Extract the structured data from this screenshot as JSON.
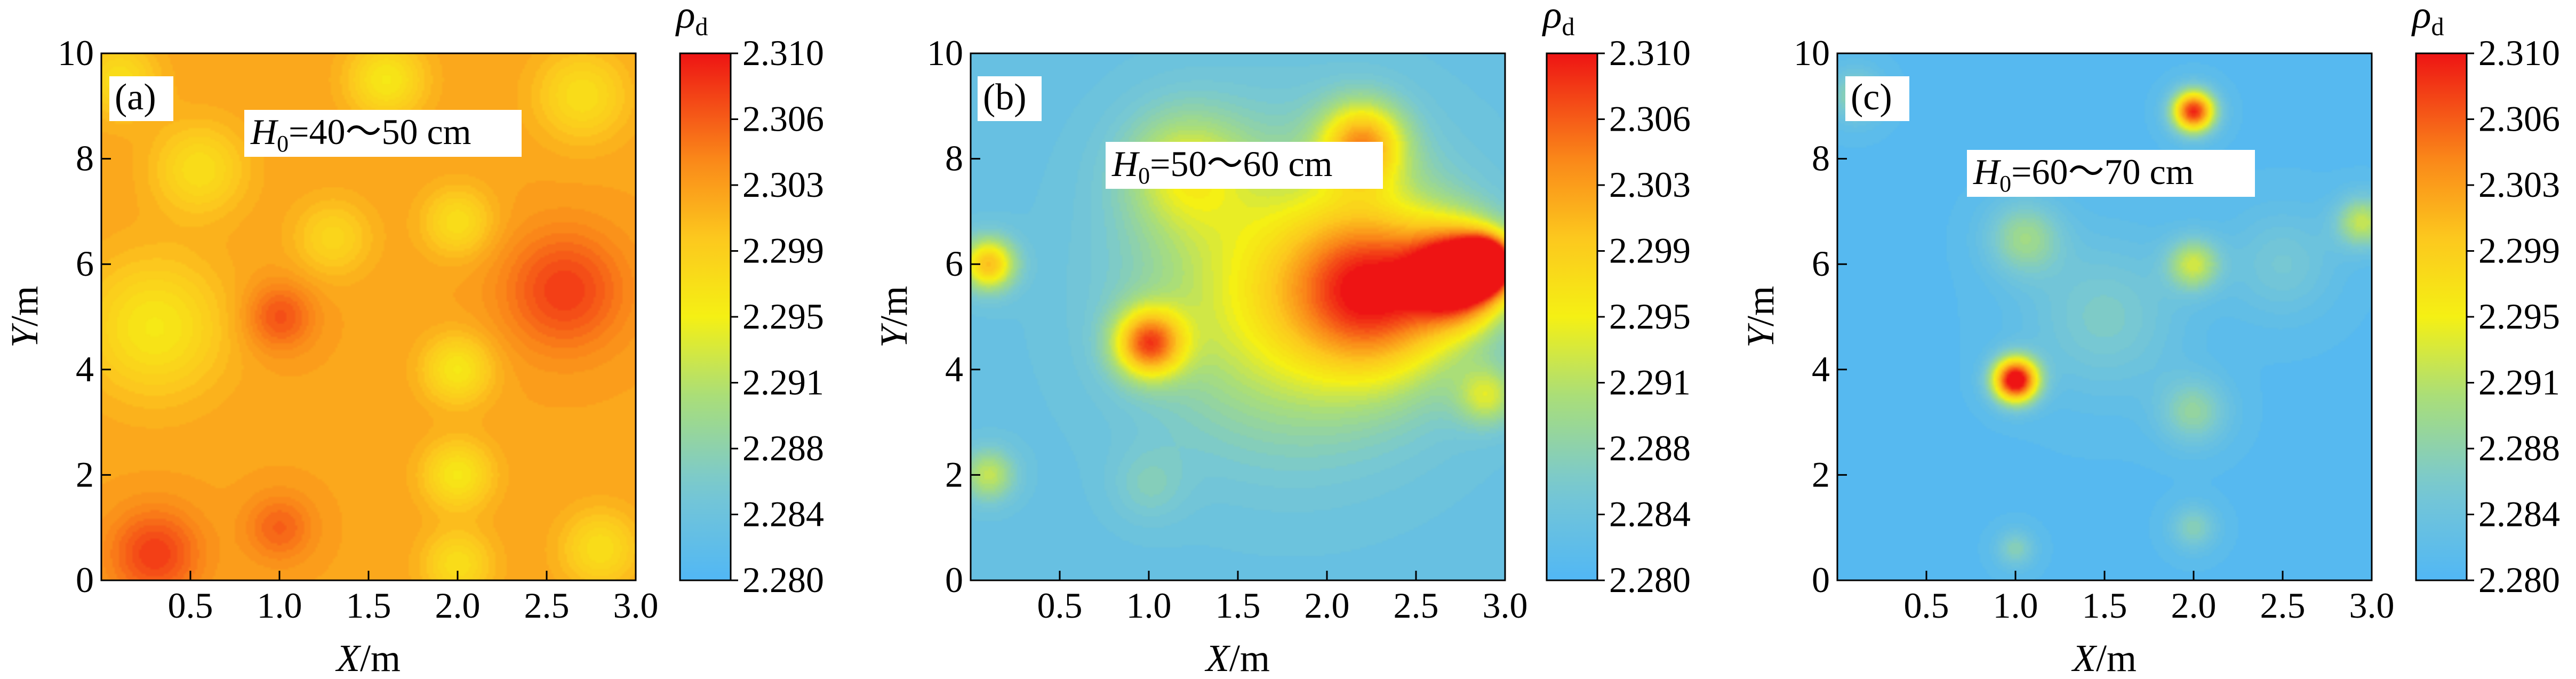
{
  "figure": {
    "panels": [
      {
        "tag": "(a)",
        "annotation_prefix": "H",
        "annotation_sub": "0",
        "annotation_suffix": "=40～50 cm"
      },
      {
        "tag": "(b)",
        "annotation_prefix": "H",
        "annotation_sub": "0",
        "annotation_suffix": "=50～60 cm"
      },
      {
        "tag": "(c)",
        "annotation_prefix": "H",
        "annotation_sub": "0",
        "annotation_suffix": "=60～70 cm"
      }
    ],
    "colorbar_symbol": "ρ",
    "colorbar_symbol_sub": "d"
  },
  "chart_data": [
    {
      "type": "heatmap",
      "title": "",
      "xlabel": "X/m",
      "ylabel": "Y/m",
      "xlim": [
        0,
        3.0
      ],
      "ylim": [
        0,
        10
      ],
      "xticks": [
        "0.5",
        "1.0",
        "1.5",
        "2.0",
        "2.5",
        "3.0"
      ],
      "yticks": [
        "0",
        "2",
        "4",
        "6",
        "8",
        "10"
      ],
      "colorbar": {
        "label": "ρd",
        "min": 2.28,
        "max": 2.31,
        "ticks": [
          "2.310",
          "2.306",
          "2.303",
          "2.299",
          "2.295",
          "2.291",
          "2.288",
          "2.284",
          "2.280"
        ]
      },
      "base_value": 2.302,
      "blobs": [
        {
          "x": 0.3,
          "y": 4.8,
          "value": 2.296,
          "spread": 0.9
        },
        {
          "x": 0.55,
          "y": 7.8,
          "value": 2.297,
          "spread": 0.6
        },
        {
          "x": 0.1,
          "y": 9.5,
          "value": 2.297,
          "spread": 0.5
        },
        {
          "x": 1.0,
          "y": 5.0,
          "value": 2.307,
          "spread": 0.45
        },
        {
          "x": 1.0,
          "y": 1.0,
          "value": 2.306,
          "spread": 0.45
        },
        {
          "x": 0.3,
          "y": 0.5,
          "value": 2.308,
          "spread": 0.6
        },
        {
          "x": 1.3,
          "y": 6.5,
          "value": 2.298,
          "spread": 0.5
        },
        {
          "x": 2.0,
          "y": 6.8,
          "value": 2.297,
          "spread": 0.45
        },
        {
          "x": 2.0,
          "y": 4.0,
          "value": 2.296,
          "spread": 0.45
        },
        {
          "x": 2.0,
          "y": 2.0,
          "value": 2.296,
          "spread": 0.45
        },
        {
          "x": 2.0,
          "y": 0.3,
          "value": 2.297,
          "spread": 0.45
        },
        {
          "x": 2.6,
          "y": 5.5,
          "value": 2.308,
          "spread": 0.8
        },
        {
          "x": 2.8,
          "y": 0.6,
          "value": 2.297,
          "spread": 0.5
        },
        {
          "x": 2.7,
          "y": 9.2,
          "value": 2.297,
          "spread": 0.6
        },
        {
          "x": 1.6,
          "y": 9.5,
          "value": 2.296,
          "spread": 0.5
        }
      ]
    },
    {
      "type": "heatmap",
      "title": "",
      "xlabel": "X/m",
      "ylabel": "Y/m",
      "xlim": [
        0,
        3.0
      ],
      "ylim": [
        0,
        10
      ],
      "xticks": [
        "0.5",
        "1.0",
        "1.5",
        "2.0",
        "2.5",
        "3.0"
      ],
      "yticks": [
        "0",
        "2",
        "4",
        "6",
        "8",
        "10"
      ],
      "colorbar": {
        "label": "ρd",
        "min": 2.28,
        "max": 2.31,
        "ticks": [
          "2.310",
          "2.306",
          "2.303",
          "2.299",
          "2.295",
          "2.291",
          "2.288",
          "2.284",
          "2.280"
        ]
      },
      "base_value": 2.283,
      "blobs": [
        {
          "x": 1.8,
          "y": 5.5,
          "value": 2.296,
          "spread": 1.9
        },
        {
          "x": 2.3,
          "y": 5.5,
          "value": 2.302,
          "spread": 1.1
        },
        {
          "x": 2.75,
          "y": 5.8,
          "value": 2.311,
          "spread": 0.6
        },
        {
          "x": 2.9,
          "y": 6.0,
          "value": 2.312,
          "spread": 0.35
        },
        {
          "x": 1.0,
          "y": 4.5,
          "value": 2.304,
          "spread": 0.45
        },
        {
          "x": 1.2,
          "y": 7.8,
          "value": 2.292,
          "spread": 0.8
        },
        {
          "x": 2.2,
          "y": 8.3,
          "value": 2.3,
          "spread": 0.55
        },
        {
          "x": 0.1,
          "y": 6.0,
          "value": 2.3,
          "spread": 0.35
        },
        {
          "x": 0.1,
          "y": 2.0,
          "value": 2.292,
          "spread": 0.35
        },
        {
          "x": 2.9,
          "y": 3.5,
          "value": 2.292,
          "spread": 0.4
        },
        {
          "x": 1.0,
          "y": 1.8,
          "value": 2.286,
          "spread": 0.5
        }
      ]
    },
    {
      "type": "heatmap",
      "title": "",
      "xlabel": "X/m",
      "ylabel": "Y/m",
      "xlim": [
        0,
        3.0
      ],
      "ylim": [
        0,
        10
      ],
      "xticks": [
        "0.5",
        "1.0",
        "1.5",
        "2.0",
        "2.5",
        "3.0"
      ],
      "yticks": [
        "0",
        "2",
        "4",
        "6",
        "8",
        "10"
      ],
      "colorbar": {
        "label": "ρd",
        "min": 2.28,
        "max": 2.31,
        "ticks": [
          "2.310",
          "2.306",
          "2.303",
          "2.299",
          "2.295",
          "2.291",
          "2.288",
          "2.284",
          "2.280"
        ]
      },
      "base_value": 2.281,
      "blobs": [
        {
          "x": 1.0,
          "y": 3.8,
          "value": 2.313,
          "spread": 0.3
        },
        {
          "x": 2.0,
          "y": 8.9,
          "value": 2.309,
          "spread": 0.28
        },
        {
          "x": 2.0,
          "y": 6.0,
          "value": 2.292,
          "spread": 0.35
        },
        {
          "x": 1.05,
          "y": 6.5,
          "value": 2.289,
          "spread": 0.5
        },
        {
          "x": 2.95,
          "y": 6.8,
          "value": 2.292,
          "spread": 0.35
        },
        {
          "x": 0.1,
          "y": 9.2,
          "value": 2.288,
          "spread": 0.35
        },
        {
          "x": 2.0,
          "y": 3.2,
          "value": 2.288,
          "spread": 0.45
        },
        {
          "x": 1.0,
          "y": 0.6,
          "value": 2.287,
          "spread": 0.25
        },
        {
          "x": 2.0,
          "y": 1.0,
          "value": 2.287,
          "spread": 0.3
        },
        {
          "x": 1.5,
          "y": 5.0,
          "value": 2.286,
          "spread": 1.0
        },
        {
          "x": 2.5,
          "y": 6.0,
          "value": 2.285,
          "spread": 0.7
        }
      ]
    }
  ]
}
